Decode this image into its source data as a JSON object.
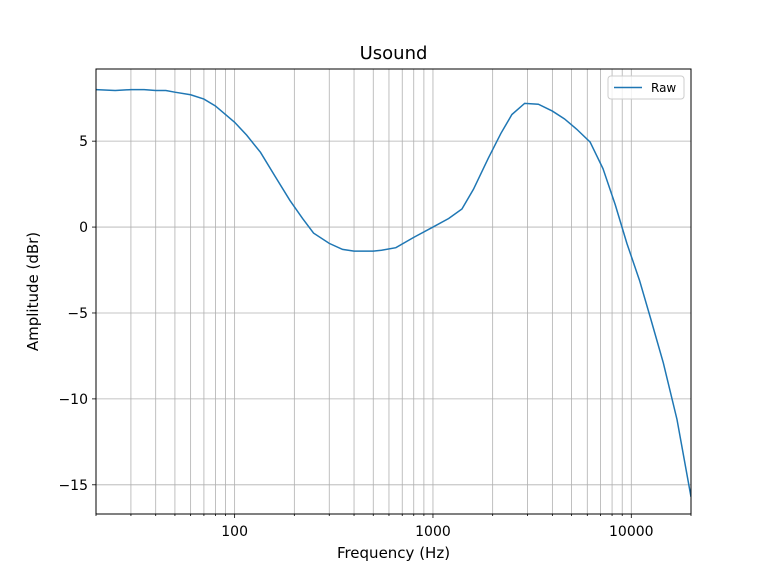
{
  "chart_data": {
    "type": "line",
    "title": "Usound",
    "xlabel": "Frequency (Hz)",
    "ylabel": "Amplitude (dBr)",
    "xscale": "log",
    "xlim": [
      20,
      20000
    ],
    "ylim": [
      -16.7,
      9.2
    ],
    "grid": "on (major and minor, x log)",
    "legend_position": "top-right",
    "line_color": "#1f77b4",
    "x_ticks": [
      {
        "value": 100,
        "label": "100"
      },
      {
        "value": 1000,
        "label": "1000"
      },
      {
        "value": 10000,
        "label": "10000"
      }
    ],
    "y_ticks": [
      {
        "value": 5,
        "label": "5"
      },
      {
        "value": 0,
        "label": "0"
      },
      {
        "value": -5,
        "label": "−5"
      },
      {
        "value": -10,
        "label": "−10"
      },
      {
        "value": -15,
        "label": "−15"
      }
    ],
    "series": [
      {
        "name": "Raw",
        "x": [
          20,
          25,
          30,
          35,
          40,
          45,
          50,
          60,
          70,
          80,
          90,
          100,
          115,
          135,
          160,
          190,
          220,
          250,
          300,
          350,
          400,
          450,
          500,
          550,
          650,
          800,
          1000,
          1200,
          1400,
          1600,
          1900,
          2200,
          2500,
          2900,
          3400,
          4000,
          4600,
          5300,
          6200,
          7200,
          8300,
          9500,
          11000,
          12500,
          14500,
          17000,
          20000
        ],
        "y": [
          8.0,
          7.95,
          8.0,
          8.0,
          7.95,
          7.95,
          7.85,
          7.7,
          7.45,
          7.05,
          6.55,
          6.1,
          5.35,
          4.35,
          2.95,
          1.55,
          0.5,
          -0.35,
          -0.95,
          -1.3,
          -1.4,
          -1.4,
          -1.4,
          -1.35,
          -1.2,
          -0.6,
          0.0,
          0.5,
          1.05,
          2.2,
          4.0,
          5.45,
          6.55,
          7.2,
          7.15,
          6.75,
          6.3,
          5.7,
          4.95,
          3.4,
          1.3,
          -0.95,
          -3.1,
          -5.3,
          -7.9,
          -11.2,
          -15.7
        ]
      }
    ]
  }
}
